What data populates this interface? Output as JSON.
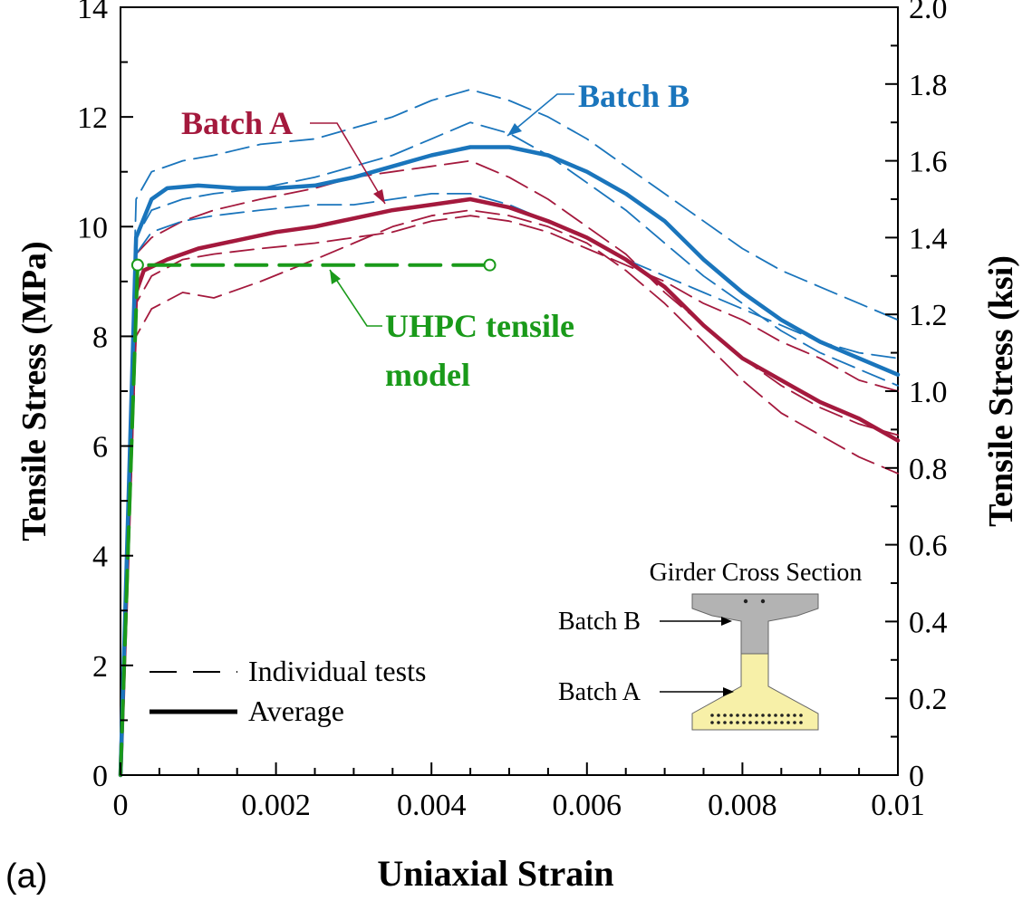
{
  "panel_label": "(a)",
  "colors": {
    "batch_a": "#a4193d",
    "batch_b": "#1a75bc",
    "model": "#1a9a1a",
    "axis": "#000000",
    "cross_gray": "#b3b3b3",
    "cross_yellow": "#f7f0a8"
  },
  "chart_data": {
    "type": "line",
    "xlabel": "Uniaxial Strain",
    "ylabel": "Tensile Stress (MPa)",
    "ylabel_right": "Tensile Stress (ksi)",
    "xlim": [
      0,
      0.01
    ],
    "ylim": [
      0,
      14
    ],
    "ylim_right": [
      0,
      2.0
    ],
    "x_ticks": [
      {
        "value": 0,
        "label": "0"
      },
      {
        "value": 0.002,
        "label": "0.002"
      },
      {
        "value": 0.004,
        "label": "0.004"
      },
      {
        "value": 0.006,
        "label": "0.006"
      },
      {
        "value": 0.008,
        "label": "0.008"
      },
      {
        "value": 0.01,
        "label": "0.01"
      }
    ],
    "y_ticks": [
      {
        "value": 0,
        "label": "0"
      },
      {
        "value": 2,
        "label": "2"
      },
      {
        "value": 4,
        "label": "4"
      },
      {
        "value": 6,
        "label": "6"
      },
      {
        "value": 8,
        "label": "8"
      },
      {
        "value": 10,
        "label": "10"
      },
      {
        "value": 12,
        "label": "12"
      },
      {
        "value": 14,
        "label": "14"
      }
    ],
    "y_right_ticks": [
      {
        "value": 0,
        "label": "0"
      },
      {
        "value": 0.2,
        "label": "0.2"
      },
      {
        "value": 0.4,
        "label": "0.4"
      },
      {
        "value": 0.6,
        "label": "0.6"
      },
      {
        "value": 0.8,
        "label": "0.8"
      },
      {
        "value": 1.0,
        "label": "1.0"
      },
      {
        "value": 1.2,
        "label": "1.2"
      },
      {
        "value": 1.4,
        "label": "1.4"
      },
      {
        "value": 1.6,
        "label": "1.6"
      },
      {
        "value": 1.8,
        "label": "1.8"
      },
      {
        "value": 2.0,
        "label": "2.0"
      }
    ],
    "grid": false,
    "legend": {
      "placement": "bottom-left",
      "entries": [
        {
          "label": "Individual tests",
          "style": "dashed"
        },
        {
          "label": "Average",
          "style": "solid"
        }
      ]
    },
    "series": [
      {
        "group": "Batch A",
        "kind": "average",
        "style": "solid",
        "x": [
          0,
          0.0002,
          0.0003,
          0.0006,
          0.001,
          0.0015,
          0.002,
          0.0025,
          0.003,
          0.0035,
          0.004,
          0.0045,
          0.005,
          0.0055,
          0.006,
          0.0065,
          0.007,
          0.0075,
          0.008,
          0.0085,
          0.009,
          0.0095,
          0.01
        ],
        "y": [
          0,
          8.8,
          9.2,
          9.4,
          9.6,
          9.75,
          9.9,
          10.0,
          10.15,
          10.3,
          10.4,
          10.5,
          10.35,
          10.1,
          9.8,
          9.4,
          8.9,
          8.2,
          7.6,
          7.2,
          6.8,
          6.5,
          6.1
        ]
      },
      {
        "group": "Batch B",
        "kind": "average",
        "style": "solid",
        "x": [
          0,
          0.0002,
          0.0004,
          0.0006,
          0.001,
          0.0015,
          0.002,
          0.0025,
          0.003,
          0.0035,
          0.004,
          0.0045,
          0.005,
          0.0055,
          0.006,
          0.0065,
          0.007,
          0.0075,
          0.008,
          0.0085,
          0.009,
          0.0095,
          0.01
        ],
        "y": [
          0,
          9.8,
          10.5,
          10.7,
          10.75,
          10.7,
          10.7,
          10.75,
          10.9,
          11.1,
          11.3,
          11.45,
          11.45,
          11.3,
          11.0,
          10.6,
          10.1,
          9.4,
          8.8,
          8.3,
          7.9,
          7.6,
          7.3
        ]
      },
      {
        "group": "Batch A",
        "kind": "individual",
        "style": "dashed",
        "x": [
          0,
          0.0002,
          0.0004,
          0.0008,
          0.0012,
          0.0018,
          0.0025,
          0.003,
          0.0035,
          0.004,
          0.0045,
          0.005,
          0.0055,
          0.006,
          0.0065,
          0.007,
          0.0075,
          0.008,
          0.0085,
          0.009,
          0.0095,
          0.01
        ],
        "y": [
          0,
          8.0,
          8.5,
          8.8,
          8.7,
          9.0,
          9.4,
          9.7,
          10.0,
          10.2,
          10.3,
          10.2,
          10.0,
          9.7,
          9.2,
          8.6,
          7.9,
          7.2,
          6.6,
          6.2,
          5.8,
          5.5
        ]
      },
      {
        "group": "Batch A",
        "kind": "individual",
        "style": "dashed",
        "x": [
          0,
          0.0002,
          0.0004,
          0.0008,
          0.0012,
          0.0018,
          0.0025,
          0.003,
          0.0035,
          0.004,
          0.0045,
          0.005,
          0.0055,
          0.006,
          0.0065,
          0.007,
          0.0075,
          0.008,
          0.0085,
          0.009,
          0.0095,
          0.01
        ],
        "y": [
          0,
          9.5,
          9.8,
          10.1,
          10.3,
          10.5,
          10.7,
          10.9,
          11.0,
          11.1,
          11.2,
          10.9,
          10.5,
          10.0,
          9.5,
          8.8,
          8.2,
          7.6,
          7.1,
          6.7,
          6.4,
          6.2
        ]
      },
      {
        "group": "Batch A",
        "kind": "individual",
        "style": "dashed",
        "x": [
          0,
          0.0002,
          0.0004,
          0.0008,
          0.0012,
          0.0018,
          0.0025,
          0.003,
          0.0035,
          0.004,
          0.0045,
          0.005,
          0.0055,
          0.006,
          0.0065,
          0.007,
          0.0075,
          0.008,
          0.0085,
          0.009,
          0.0095,
          0.01
        ],
        "y": [
          0,
          8.6,
          9.1,
          9.4,
          9.5,
          9.6,
          9.7,
          9.8,
          9.9,
          10.1,
          10.2,
          10.1,
          9.9,
          9.6,
          9.3,
          9.0,
          8.6,
          8.3,
          7.9,
          7.6,
          7.2,
          7.0
        ]
      },
      {
        "group": "Batch B",
        "kind": "individual",
        "style": "dashed",
        "x": [
          0,
          0.0002,
          0.0004,
          0.0008,
          0.0012,
          0.0018,
          0.0025,
          0.003,
          0.0035,
          0.004,
          0.0045,
          0.005,
          0.0055,
          0.006,
          0.0065,
          0.007,
          0.0075,
          0.008,
          0.0085,
          0.009,
          0.0095,
          0.01
        ],
        "y": [
          0,
          10.5,
          11.0,
          11.2,
          11.3,
          11.5,
          11.6,
          11.8,
          12.0,
          12.3,
          12.5,
          12.3,
          12.0,
          11.6,
          11.1,
          10.6,
          10.1,
          9.6,
          9.2,
          8.9,
          8.6,
          8.3
        ]
      },
      {
        "group": "Batch B",
        "kind": "individual",
        "style": "dashed",
        "x": [
          0,
          0.0002,
          0.0004,
          0.0008,
          0.0012,
          0.0018,
          0.0025,
          0.003,
          0.0035,
          0.004,
          0.0045,
          0.005,
          0.0055,
          0.006,
          0.0065,
          0.007,
          0.0075,
          0.008,
          0.0085,
          0.009,
          0.0095,
          0.01
        ],
        "y": [
          0,
          9.8,
          10.3,
          10.5,
          10.6,
          10.7,
          10.9,
          11.1,
          11.3,
          11.6,
          11.9,
          11.7,
          11.3,
          10.8,
          10.3,
          9.7,
          9.1,
          8.6,
          8.1,
          7.7,
          7.4,
          7.1
        ]
      },
      {
        "group": "Batch B",
        "kind": "individual",
        "style": "dashed",
        "x": [
          0,
          0.0002,
          0.0004,
          0.0008,
          0.0012,
          0.0018,
          0.0025,
          0.003,
          0.0035,
          0.004,
          0.0045,
          0.005,
          0.0055,
          0.006,
          0.0065,
          0.007,
          0.0075,
          0.008,
          0.0085,
          0.009,
          0.0095,
          0.01
        ],
        "y": [
          0,
          9.5,
          9.9,
          10.1,
          10.2,
          10.3,
          10.4,
          10.4,
          10.5,
          10.6,
          10.6,
          10.4,
          10.1,
          9.8,
          9.4,
          9.1,
          8.8,
          8.5,
          8.2,
          7.9,
          7.7,
          7.6
        ]
      },
      {
        "group": "UHPC tensile model",
        "kind": "model",
        "style": "dashed",
        "x": [
          0,
          0.00022,
          0.00475
        ],
        "y": [
          0,
          9.3,
          9.3
        ]
      }
    ],
    "annotations": [
      {
        "text": "Batch A",
        "color": "batch_a"
      },
      {
        "text": "Batch B",
        "color": "batch_b"
      },
      {
        "text_lines": [
          "UHPC tensile",
          "model"
        ],
        "color": "model"
      }
    ],
    "inset": {
      "title": "Girder Cross Section",
      "labels": [
        "Batch B",
        "Batch A"
      ]
    }
  }
}
